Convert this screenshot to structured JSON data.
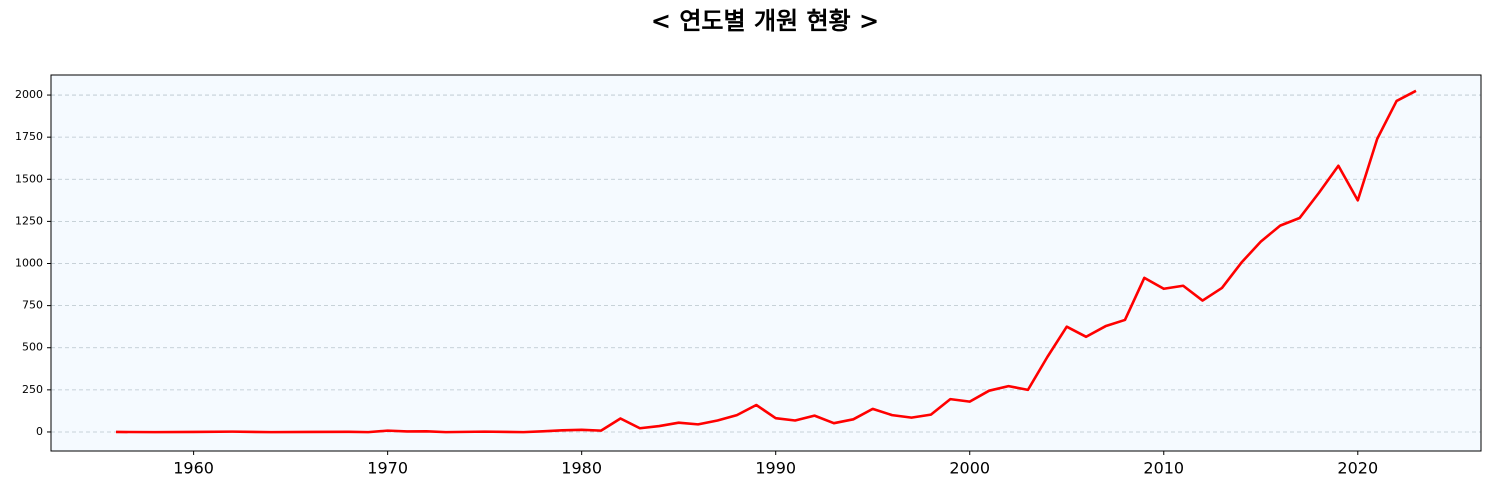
{
  "chart_data": {
    "type": "line",
    "title": "< 연도별 개원 현황 >",
    "x": [
      1956,
      1958,
      1960,
      1962,
      1964,
      1966,
      1968,
      1969,
      1970,
      1971,
      1972,
      1973,
      1975,
      1977,
      1978,
      1979,
      1980,
      1981,
      1982,
      1983,
      1984,
      1985,
      1986,
      1987,
      1988,
      1989,
      1990,
      1991,
      1992,
      1993,
      1994,
      1995,
      1996,
      1997,
      1998,
      1999,
      2000,
      2001,
      2002,
      2003,
      2004,
      2005,
      2006,
      2007,
      2008,
      2009,
      2010,
      2011,
      2012,
      2013,
      2014,
      2015,
      2016,
      2017,
      2018,
      2019,
      2020,
      2021,
      2022,
      2023
    ],
    "series": [
      {
        "name": "개원",
        "color": "#ff0000",
        "values": [
          0,
          -1,
          0,
          2,
          -1,
          0,
          1,
          -1,
          8,
          3,
          4,
          -1,
          2,
          -1,
          4,
          10,
          13,
          8,
          80,
          22,
          35,
          55,
          45,
          68,
          100,
          160,
          82,
          68,
          97,
          52,
          75,
          137,
          100,
          85,
          103,
          195,
          180,
          245,
          272,
          250,
          445,
          625,
          565,
          628,
          665,
          915,
          850,
          868,
          780,
          855,
          1005,
          1130,
          1225,
          1270,
          1420,
          1580,
          1375,
          1740,
          1965,
          2025
        ]
      }
    ],
    "xlim": [
      1952.65,
      2026.35
    ],
    "ylim": [
      -113,
      2119
    ],
    "xticks": [
      1960,
      1970,
      1980,
      1990,
      2000,
      2010,
      2020
    ],
    "yticks": [
      0,
      250,
      500,
      750,
      1000,
      1250,
      1500,
      1750,
      2000
    ],
    "grid": true,
    "background": "#f5faff"
  }
}
